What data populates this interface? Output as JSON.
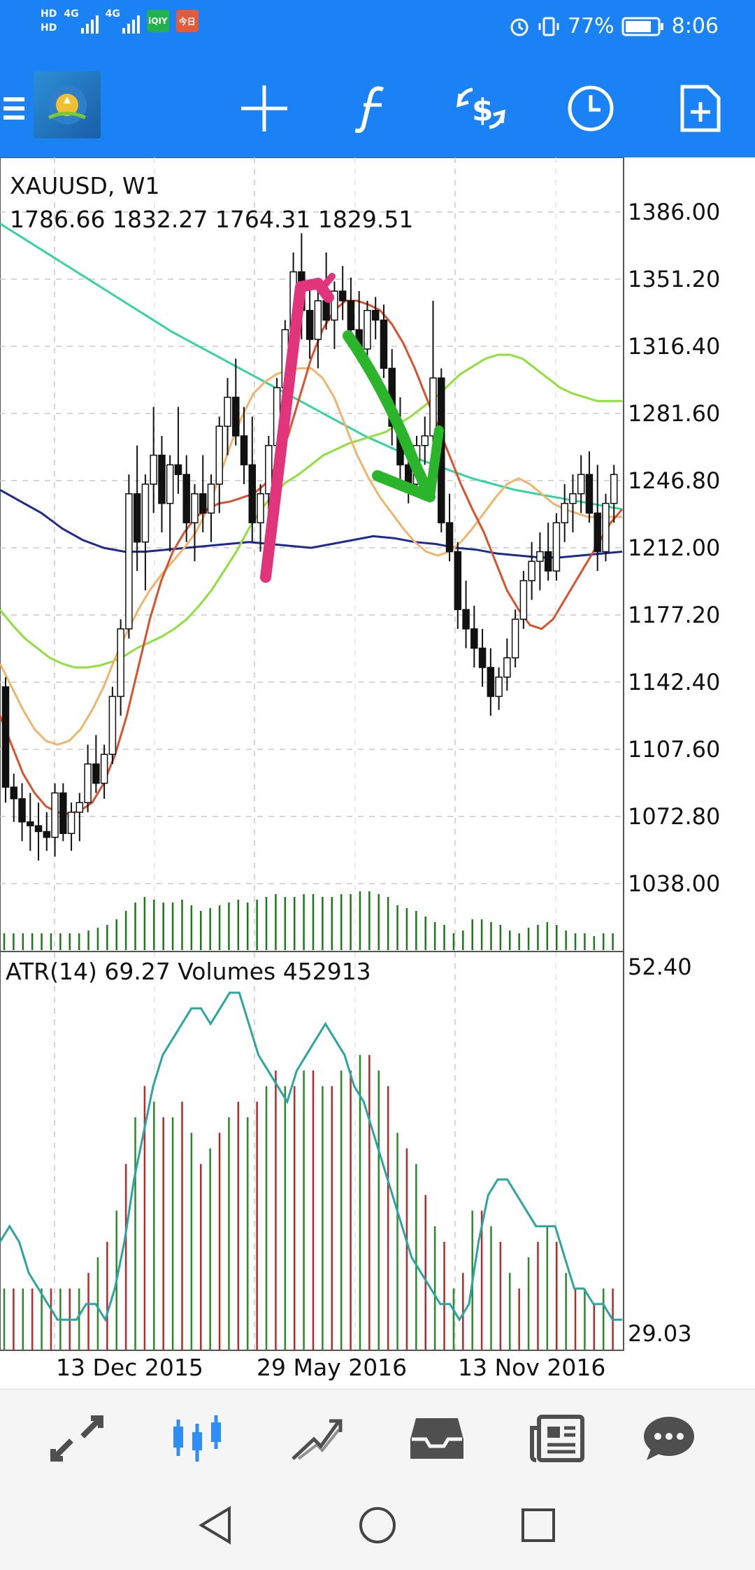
{
  "status": {
    "hd1": "HD",
    "hd2": "HD",
    "net1": "4G",
    "net2": "4G",
    "battery": "77%",
    "time": "8:06",
    "badges": [
      {
        "text": "iQIY",
        "color": "#22b14c"
      },
      {
        "text": "今日",
        "color": "#e45b3a"
      }
    ]
  },
  "toolbar": {
    "icons": [
      "menu-icon",
      "app-logo",
      "crosshair-icon",
      "function-icon",
      "trade-icon",
      "history-clock-icon",
      "new-order-icon"
    ]
  },
  "chart": {
    "symbol_line": "XAUUSD, W1",
    "ohlc_line": "1786.66 1832.27 1764.31 1829.51",
    "indicator_line": "ATR(14) 69.27 Volumes 452913",
    "price_ticks": [
      "1386.00",
      "1351.20",
      "1316.40",
      "1281.60",
      "1246.80",
      "1212.00",
      "1177.20",
      "1142.40",
      "1107.60",
      "1072.80",
      "1038.00"
    ],
    "sub_ticks": [
      "52.40",
      "29.03"
    ],
    "date_labels": [
      "13 Dec 2015",
      "29 May 2016",
      "13 Nov 2016"
    ]
  },
  "bottom_nav": {
    "items": [
      "quotes-icon",
      "chart-icon",
      "trade-icon",
      "history-icon",
      "news-icon",
      "chat-icon"
    ]
  },
  "chart_data": {
    "type": "line",
    "title": "XAUUSD, W1",
    "ylim": [
      1038.0,
      1386.0
    ],
    "sub_ylim": [
      29.03,
      52.4
    ],
    "candles": [
      {
        "o": 1140,
        "h": 1145,
        "l": 1080,
        "c": 1088
      },
      {
        "o": 1088,
        "h": 1095,
        "l": 1070,
        "c": 1082
      },
      {
        "o": 1082,
        "h": 1090,
        "l": 1060,
        "c": 1070
      },
      {
        "o": 1070,
        "h": 1085,
        "l": 1055,
        "c": 1068
      },
      {
        "o": 1068,
        "h": 1080,
        "l": 1050,
        "c": 1065
      },
      {
        "o": 1065,
        "h": 1075,
        "l": 1055,
        "c": 1062
      },
      {
        "o": 1062,
        "h": 1090,
        "l": 1052,
        "c": 1085
      },
      {
        "o": 1085,
        "h": 1090,
        "l": 1060,
        "c": 1064
      },
      {
        "o": 1064,
        "h": 1080,
        "l": 1055,
        "c": 1075
      },
      {
        "o": 1075,
        "h": 1085,
        "l": 1060,
        "c": 1080
      },
      {
        "o": 1080,
        "h": 1110,
        "l": 1075,
        "c": 1100
      },
      {
        "o": 1100,
        "h": 1115,
        "l": 1085,
        "c": 1090
      },
      {
        "o": 1090,
        "h": 1110,
        "l": 1082,
        "c": 1105
      },
      {
        "o": 1105,
        "h": 1140,
        "l": 1100,
        "c": 1135
      },
      {
        "o": 1135,
        "h": 1175,
        "l": 1125,
        "c": 1170
      },
      {
        "o": 1170,
        "h": 1250,
        "l": 1165,
        "c": 1240
      },
      {
        "o": 1240,
        "h": 1265,
        "l": 1200,
        "c": 1215
      },
      {
        "o": 1215,
        "h": 1250,
        "l": 1190,
        "c": 1245
      },
      {
        "o": 1245,
        "h": 1285,
        "l": 1230,
        "c": 1260
      },
      {
        "o": 1260,
        "h": 1270,
        "l": 1220,
        "c": 1235
      },
      {
        "o": 1235,
        "h": 1260,
        "l": 1210,
        "c": 1255
      },
      {
        "o": 1255,
        "h": 1285,
        "l": 1240,
        "c": 1250
      },
      {
        "o": 1250,
        "h": 1260,
        "l": 1215,
        "c": 1225
      },
      {
        "o": 1225,
        "h": 1245,
        "l": 1205,
        "c": 1240
      },
      {
        "o": 1240,
        "h": 1260,
        "l": 1220,
        "c": 1230
      },
      {
        "o": 1230,
        "h": 1250,
        "l": 1215,
        "c": 1245
      },
      {
        "o": 1245,
        "h": 1280,
        "l": 1230,
        "c": 1275
      },
      {
        "o": 1275,
        "h": 1300,
        "l": 1260,
        "c": 1290
      },
      {
        "o": 1290,
        "h": 1310,
        "l": 1265,
        "c": 1270
      },
      {
        "o": 1270,
        "h": 1285,
        "l": 1245,
        "c": 1255
      },
      {
        "o": 1255,
        "h": 1280,
        "l": 1215,
        "c": 1225
      },
      {
        "o": 1225,
        "h": 1245,
        "l": 1210,
        "c": 1240
      },
      {
        "o": 1240,
        "h": 1270,
        "l": 1230,
        "c": 1265
      },
      {
        "o": 1265,
        "h": 1300,
        "l": 1260,
        "c": 1295
      },
      {
        "o": 1295,
        "h": 1330,
        "l": 1285,
        "c": 1325
      },
      {
        "o": 1325,
        "h": 1365,
        "l": 1315,
        "c": 1355
      },
      {
        "o": 1355,
        "h": 1375,
        "l": 1320,
        "c": 1335
      },
      {
        "o": 1335,
        "h": 1350,
        "l": 1310,
        "c": 1320
      },
      {
        "o": 1320,
        "h": 1345,
        "l": 1305,
        "c": 1340
      },
      {
        "o": 1340,
        "h": 1365,
        "l": 1325,
        "c": 1330
      },
      {
        "o": 1330,
        "h": 1350,
        "l": 1315,
        "c": 1345
      },
      {
        "o": 1345,
        "h": 1358,
        "l": 1330,
        "c": 1340
      },
      {
        "o": 1340,
        "h": 1352,
        "l": 1320,
        "c": 1325
      },
      {
        "o": 1325,
        "h": 1345,
        "l": 1310,
        "c": 1315
      },
      {
        "o": 1315,
        "h": 1340,
        "l": 1305,
        "c": 1335
      },
      {
        "o": 1335,
        "h": 1342,
        "l": 1320,
        "c": 1330
      },
      {
        "o": 1330,
        "h": 1338,
        "l": 1300,
        "c": 1305
      },
      {
        "o": 1305,
        "h": 1315,
        "l": 1265,
        "c": 1275
      },
      {
        "o": 1275,
        "h": 1290,
        "l": 1245,
        "c": 1255
      },
      {
        "o": 1255,
        "h": 1270,
        "l": 1235,
        "c": 1245
      },
      {
        "o": 1245,
        "h": 1270,
        "l": 1240,
        "c": 1265
      },
      {
        "o": 1265,
        "h": 1280,
        "l": 1255,
        "c": 1270
      },
      {
        "o": 1270,
        "h": 1340,
        "l": 1265,
        "c": 1300
      },
      {
        "o": 1300,
        "h": 1305,
        "l": 1220,
        "c": 1225
      },
      {
        "o": 1225,
        "h": 1240,
        "l": 1205,
        "c": 1210
      },
      {
        "o": 1210,
        "h": 1215,
        "l": 1170,
        "c": 1180
      },
      {
        "o": 1180,
        "h": 1195,
        "l": 1160,
        "c": 1170
      },
      {
        "o": 1170,
        "h": 1182,
        "l": 1150,
        "c": 1160
      },
      {
        "o": 1160,
        "h": 1170,
        "l": 1140,
        "c": 1150
      },
      {
        "o": 1150,
        "h": 1160,
        "l": 1125,
        "c": 1135
      },
      {
        "o": 1135,
        "h": 1150,
        "l": 1128,
        "c": 1145
      },
      {
        "o": 1145,
        "h": 1165,
        "l": 1138,
        "c": 1155
      },
      {
        "o": 1155,
        "h": 1180,
        "l": 1150,
        "c": 1175
      },
      {
        "o": 1175,
        "h": 1200,
        "l": 1170,
        "c": 1195
      },
      {
        "o": 1195,
        "h": 1215,
        "l": 1185,
        "c": 1205
      },
      {
        "o": 1205,
        "h": 1220,
        "l": 1190,
        "c": 1210
      },
      {
        "o": 1210,
        "h": 1225,
        "l": 1195,
        "c": 1200
      },
      {
        "o": 1200,
        "h": 1230,
        "l": 1195,
        "c": 1225
      },
      {
        "o": 1225,
        "h": 1245,
        "l": 1215,
        "c": 1235
      },
      {
        "o": 1235,
        "h": 1250,
        "l": 1220,
        "c": 1240
      },
      {
        "o": 1240,
        "h": 1260,
        "l": 1230,
        "c": 1250
      },
      {
        "o": 1250,
        "h": 1262,
        "l": 1225,
        "c": 1230
      },
      {
        "o": 1230,
        "h": 1255,
        "l": 1200,
        "c": 1210
      },
      {
        "o": 1210,
        "h": 1240,
        "l": 1205,
        "c": 1235
      },
      {
        "o": 1235,
        "h": 1255,
        "l": 1225,
        "c": 1250
      }
    ],
    "ma_red": [
      1125,
      1110,
      1095,
      1085,
      1078,
      1075,
      1074,
      1076,
      1080,
      1090,
      1105,
      1125,
      1150,
      1175,
      1195,
      1210,
      1220,
      1228,
      1232,
      1235,
      1236,
      1238,
      1240,
      1245,
      1255,
      1270,
      1290,
      1310,
      1325,
      1335,
      1340,
      1340,
      1338,
      1335,
      1328,
      1318,
      1305,
      1290,
      1275,
      1260,
      1245,
      1232,
      1220,
      1205,
      1190,
      1180,
      1172,
      1170,
      1175,
      1185,
      1195,
      1205,
      1215,
      1225,
      1232
    ],
    "ma_orange": [
      1152,
      1140,
      1128,
      1118,
      1112,
      1110,
      1112,
      1118,
      1128,
      1140,
      1155,
      1168,
      1180,
      1190,
      1198,
      1205,
      1212,
      1220,
      1232,
      1248,
      1265,
      1280,
      1292,
      1298,
      1302,
      1304,
      1305,
      1305,
      1300,
      1290,
      1275,
      1260,
      1248,
      1238,
      1230,
      1222,
      1215,
      1210,
      1208,
      1210,
      1215,
      1222,
      1230,
      1238,
      1245,
      1248,
      1245,
      1240,
      1235,
      1232,
      1230,
      1228,
      1228,
      1228,
      1228
    ],
    "ma_lightgreen": [
      1180,
      1172,
      1165,
      1160,
      1155,
      1152,
      1150,
      1150,
      1151,
      1153,
      1156,
      1160,
      1163,
      1166,
      1170,
      1175,
      1182,
      1190,
      1200,
      1210,
      1222,
      1232,
      1240,
      1246,
      1250,
      1255,
      1260,
      1263,
      1266,
      1268,
      1270,
      1272,
      1276,
      1280,
      1285,
      1290,
      1296,
      1302,
      1306,
      1310,
      1312,
      1312,
      1310,
      1305,
      1300,
      1295,
      1292,
      1290,
      1288,
      1288,
      1288
    ],
    "ma_teal": [
      1380,
      1373,
      1366,
      1359,
      1352,
      1345,
      1338,
      1331,
      1324,
      1318,
      1312,
      1306,
      1300,
      1294,
      1288,
      1282,
      1276,
      1270,
      1265,
      1260,
      1256,
      1252,
      1248,
      1245,
      1242,
      1240,
      1238,
      1236,
      1234,
      1232
    ],
    "ma_navy": [
      1242,
      1236,
      1230,
      1222,
      1216,
      1212,
      1210,
      1210,
      1211,
      1212,
      1213,
      1214,
      1215,
      1214,
      1213,
      1212,
      1214,
      1216,
      1218,
      1217,
      1215,
      1214,
      1212,
      1211,
      1209,
      1208,
      1207,
      1207,
      1208,
      1209,
      1210
    ],
    "atr": [
      36,
      37,
      36,
      34,
      33,
      32,
      31,
      31,
      31,
      32,
      32,
      31,
      33,
      36,
      40,
      43,
      46,
      48,
      49,
      50,
      51,
      51,
      50,
      51,
      52,
      52,
      50,
      48,
      47,
      46,
      45,
      47,
      48,
      49,
      50,
      49,
      48,
      46,
      45,
      43,
      41,
      39,
      37,
      35,
      34,
      33,
      32,
      32,
      31,
      32,
      36,
      39,
      40,
      40,
      39,
      38,
      37,
      37,
      37,
      35,
      33,
      33,
      32,
      32,
      31,
      31
    ],
    "volume": [
      33,
      33,
      33,
      33,
      33,
      33,
      33,
      33,
      33,
      34,
      35,
      36,
      38,
      41,
      44,
      46,
      45,
      44,
      44,
      45,
      43,
      41,
      42,
      43,
      44,
      45,
      44,
      45,
      46,
      47,
      46,
      46,
      47,
      47,
      46,
      46,
      47,
      47,
      48,
      48,
      47,
      46,
      43,
      42,
      41,
      39,
      37,
      36,
      33,
      34,
      38,
      38,
      37,
      36,
      34,
      33,
      35,
      36,
      37,
      36,
      34,
      33,
      33,
      32,
      33,
      33
    ]
  }
}
